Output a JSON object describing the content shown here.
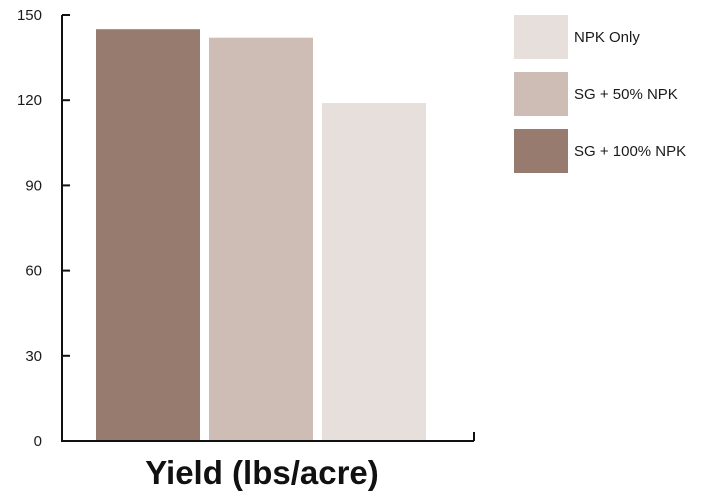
{
  "chart_data": {
    "type": "bar",
    "title": "",
    "xlabel": "Yield (lbs/acre)",
    "ylabel": "",
    "ylim": [
      0,
      150
    ],
    "yticks": [
      0,
      30,
      60,
      90,
      120,
      150
    ],
    "grid": false,
    "legend_position": "right",
    "categories": [
      "SG + 100% NPK",
      "SG + 50% NPK",
      "NPK Only"
    ],
    "values": [
      145,
      142,
      119
    ],
    "colors": [
      "#977b6e",
      "#cdbdb5",
      "#e7dfdb"
    ],
    "legend": [
      {
        "label": "NPK Only",
        "color": "#e7dfdb"
      },
      {
        "label": "SG + 50% NPK",
        "color": "#cdbdb5"
      },
      {
        "label": "SG + 100% NPK",
        "color": "#977b6e"
      }
    ]
  }
}
